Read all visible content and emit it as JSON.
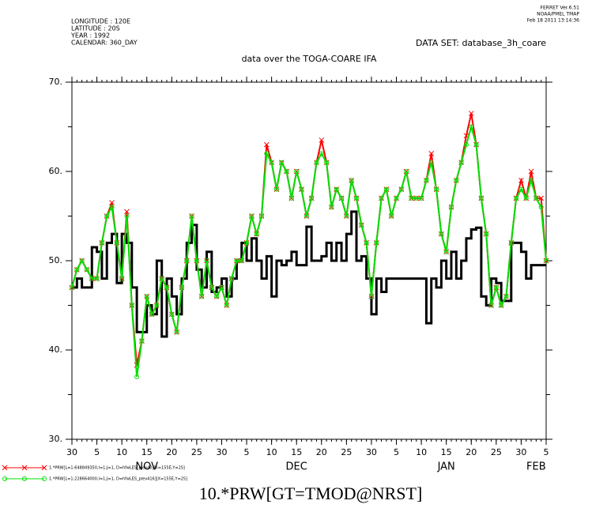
{
  "chart_data": {
    "type": "line",
    "header_left": [
      "LONGITUDE : 120E",
      "LATITUDE : 20S",
      "YEAR : 1992",
      "CALENDAR: 360_DAY"
    ],
    "header_right": [
      "FERRET  Ver.6.51",
      "NOAA/PMEL TMAP",
      "Feb 18 2011 13:14:36"
    ],
    "dataset": "DATA SET: database_3h_coare",
    "title": "data over the TOGA-COARE IFA",
    "xlabel": "10.*PRW[GT=TMOD@NRST]",
    "xlim": [
      0,
      95
    ],
    "ylim": [
      30,
      70
    ],
    "xticks": [
      {
        "value": 0,
        "label": "30"
      },
      {
        "value": 5,
        "label": "5"
      },
      {
        "value": 10,
        "label": "10"
      },
      {
        "value": 15,
        "label": "15"
      },
      {
        "value": 20,
        "label": "20"
      },
      {
        "value": 25,
        "label": "25"
      },
      {
        "value": 30,
        "label": "30"
      },
      {
        "value": 35,
        "label": "5"
      },
      {
        "value": 40,
        "label": "10"
      },
      {
        "value": 45,
        "label": "15"
      },
      {
        "value": 50,
        "label": "20"
      },
      {
        "value": 55,
        "label": "25"
      },
      {
        "value": 60,
        "label": "30"
      },
      {
        "value": 65,
        "label": "5"
      },
      {
        "value": 70,
        "label": "10"
      },
      {
        "value": 75,
        "label": "15"
      },
      {
        "value": 80,
        "label": "20"
      },
      {
        "value": 85,
        "label": "25"
      },
      {
        "value": 90,
        "label": "30"
      },
      {
        "value": 95,
        "label": "5"
      }
    ],
    "month_labels": [
      {
        "value": 15,
        "label": "NOV"
      },
      {
        "value": 45,
        "label": "DEC"
      },
      {
        "value": 75,
        "label": "JAN"
      },
      {
        "value": 93,
        "label": "FEB"
      }
    ],
    "yticks": [
      {
        "value": 30,
        "label": "30."
      },
      {
        "value": 40,
        "label": "40."
      },
      {
        "value": 50,
        "label": "50."
      },
      {
        "value": 60,
        "label": "60."
      },
      {
        "value": 70,
        "label": "70."
      }
    ],
    "yminorticks": [
      35,
      45,
      55,
      65
    ],
    "x": [
      0,
      1,
      2,
      3,
      4,
      5,
      6,
      7,
      8,
      9,
      10,
      11,
      12,
      13,
      14,
      15,
      16,
      17,
      18,
      19,
      20,
      21,
      22,
      23,
      24,
      25,
      26,
      27,
      28,
      29,
      30,
      31,
      32,
      33,
      34,
      35,
      36,
      37,
      38,
      39,
      40,
      41,
      42,
      43,
      44,
      45,
      46,
      47,
      48,
      49,
      50,
      51,
      52,
      53,
      54,
      55,
      56,
      57,
      58,
      59,
      60,
      61,
      62,
      63,
      64,
      65,
      66,
      67,
      68,
      69,
      70,
      71,
      72,
      73,
      74,
      75,
      76,
      77,
      78,
      79,
      80,
      81,
      82,
      83,
      84,
      85,
      86,
      87,
      88,
      89,
      90,
      91,
      92,
      93,
      94,
      95
    ],
    "series": [
      {
        "color": "#000000",
        "step": true,
        "marker": "none",
        "values": [
          47,
          48,
          47,
          47,
          51.5,
          51,
          48,
          52,
          53,
          47.5,
          53,
          52,
          47,
          42,
          42,
          45,
          44,
          50,
          41.5,
          48,
          46,
          44,
          48,
          52,
          54,
          49,
          47,
          51,
          46.5,
          47,
          48,
          46,
          48,
          50,
          52,
          50,
          52.5,
          50,
          48,
          50.5,
          46,
          50,
          49.5,
          50,
          51,
          49.5,
          49.5,
          53.8,
          50,
          50,
          50.5,
          52,
          50,
          52,
          50,
          53,
          55.5,
          50,
          50.5,
          48,
          44,
          48,
          46.5,
          48,
          48,
          48,
          48,
          48,
          48,
          48,
          48,
          43,
          48,
          47,
          50,
          48,
          51,
          48,
          50,
          52.5,
          53.5,
          53.7,
          46,
          45,
          48,
          47.5,
          45.5,
          45.5,
          52,
          52,
          51,
          48,
          49.5,
          49.5,
          49.5,
          49.5
        ]
      },
      {
        "name": "1.*PRW[L=1:648849350,I=1,J=1, D=hfwLES_plev40][X=155E,Y=2S]",
        "color": "#ff0000",
        "step": false,
        "marker": "x",
        "values": [
          47,
          49,
          50,
          49,
          48,
          48,
          52,
          55,
          56.5,
          52,
          48,
          55.5,
          45,
          38.3,
          41,
          46,
          44,
          45,
          48,
          47,
          44,
          42,
          47,
          50,
          55,
          50,
          46,
          50,
          47,
          46,
          47,
          45,
          48,
          50,
          50,
          52,
          55,
          53,
          55,
          63,
          61,
          58,
          61,
          60,
          57,
          60,
          58,
          55,
          57,
          61,
          63.5,
          61,
          56,
          58,
          57,
          55,
          59,
          57,
          54,
          52,
          46,
          52,
          57,
          58,
          55,
          57,
          58,
          60,
          57,
          57,
          57,
          59,
          62,
          58,
          53,
          51,
          56,
          59,
          61,
          64,
          66.5,
          63,
          57,
          53,
          45,
          47,
          45,
          46,
          52,
          57,
          59,
          57,
          60,
          57,
          57,
          50
        ]
      },
      {
        "name": "1.*PRW[L=1:228664000,I=1,J=1, D=hfwLES_plev416][X=155E,Y=2S]",
        "color": "#00e000",
        "step": false,
        "marker": "o",
        "values": [
          47,
          49,
          50,
          49,
          48,
          48,
          52,
          55,
          56,
          52,
          48,
          55,
          45,
          37,
          41,
          46,
          44,
          45,
          48,
          47,
          44,
          42,
          47,
          50,
          55,
          50,
          46,
          50,
          47,
          46,
          47,
          45,
          48,
          50,
          50,
          52,
          55,
          53,
          55,
          62,
          61,
          58,
          61,
          60,
          57,
          60,
          58,
          55,
          57,
          61,
          62,
          61,
          56,
          58,
          57,
          55,
          59,
          57,
          54,
          52,
          46,
          52,
          57,
          58,
          55,
          57,
          58,
          60,
          57,
          57,
          57,
          59,
          61,
          58,
          53,
          51,
          56,
          59,
          61,
          63,
          65,
          63,
          57,
          53,
          45,
          47,
          45,
          46,
          52,
          57,
          58,
          57,
          59,
          57,
          56,
          50
        ]
      }
    ]
  }
}
